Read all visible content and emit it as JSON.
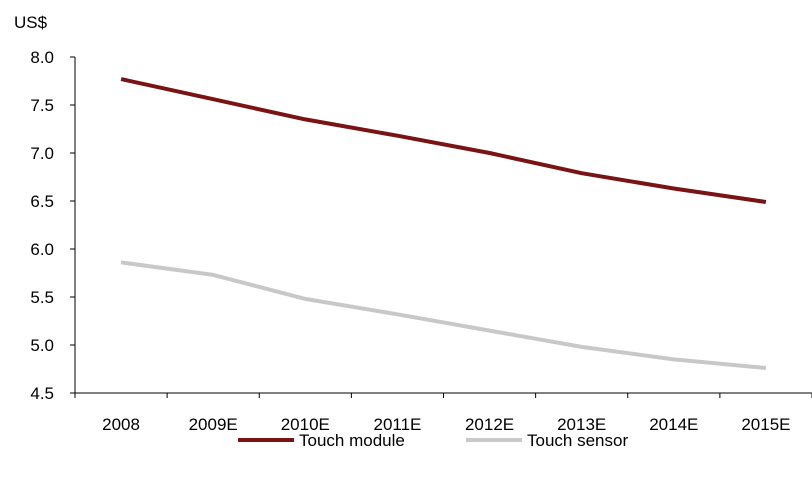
{
  "chart_data": {
    "type": "line",
    "unit_label": "US$",
    "categories": [
      "2008",
      "2009E",
      "2010E",
      "2011E",
      "2012E",
      "2013E",
      "2014E",
      "2015E"
    ],
    "series": [
      {
        "name": "Touch module",
        "color": "#7a1414",
        "values": [
          7.77,
          7.56,
          7.35,
          7.18,
          7.0,
          6.79,
          6.63,
          6.49
        ]
      },
      {
        "name": "Touch sensor",
        "color": "#c8c8c8",
        "values": [
          5.86,
          5.73,
          5.48,
          5.32,
          5.15,
          4.98,
          4.85,
          4.76
        ]
      }
    ],
    "ylim": [
      4.5,
      8.0
    ],
    "yticks": [
      "4.5",
      "5.0",
      "5.5",
      "6.0",
      "6.5",
      "7.0",
      "7.5",
      "8.0"
    ],
    "grid": false,
    "legend_position": "bottom"
  }
}
